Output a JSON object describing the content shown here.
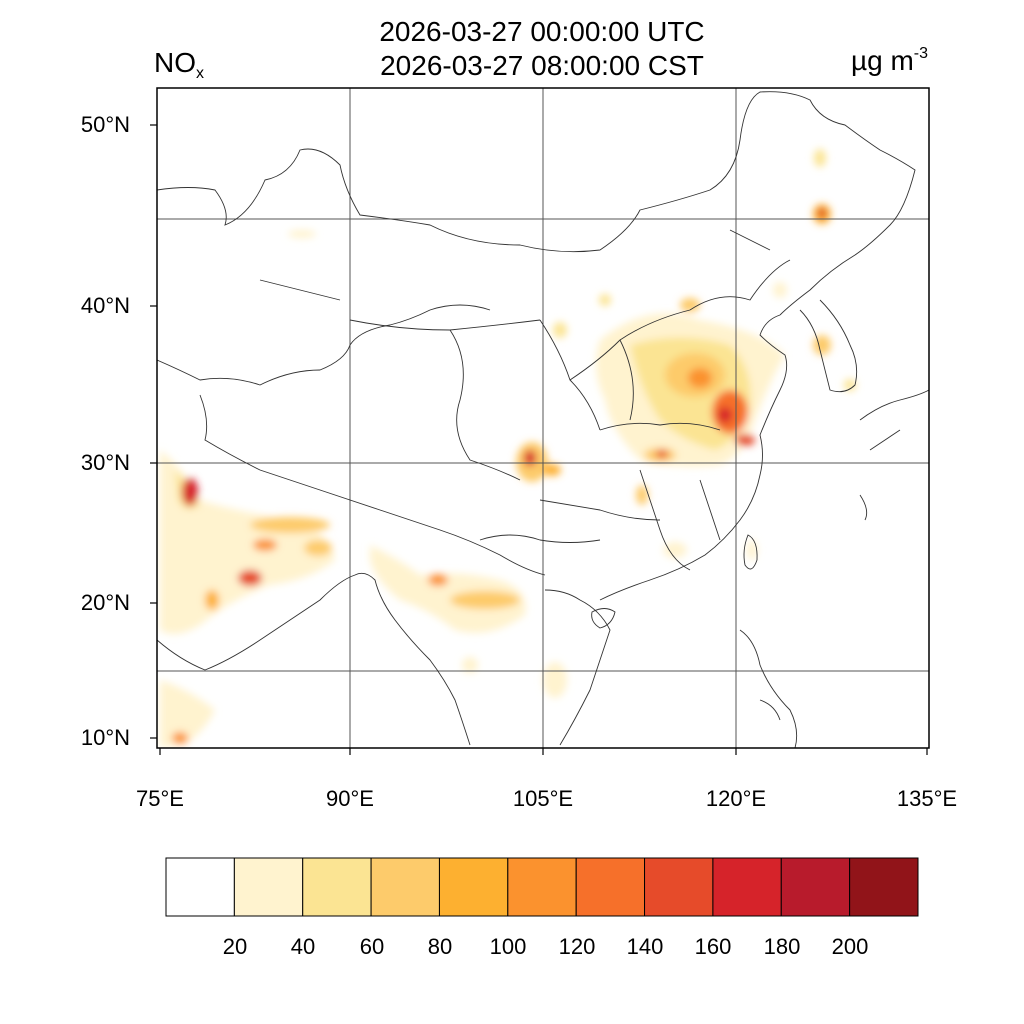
{
  "header": {
    "title_utc": "2026-03-27 00:00:00 UTC",
    "title_cst": "2026-03-27 08:00:00 CST",
    "species_main": "NO",
    "species_sub": "x",
    "units_main": "µg m",
    "units_sup": "-3"
  },
  "axes": {
    "lat_labels": [
      "50°N",
      "40°N",
      "30°N",
      "20°N",
      "10°N"
    ],
    "lon_labels": [
      "75°E",
      "90°E",
      "105°E",
      "120°E",
      "135°E"
    ]
  },
  "colorbar": {
    "labels": [
      "20",
      "40",
      "60",
      "80",
      "100",
      "120",
      "140",
      "160",
      "180",
      "200"
    ],
    "colors": [
      "#ffffff",
      "#fff3cf",
      "#fbe493",
      "#fdcb6b",
      "#fdb030",
      "#fb922e",
      "#f6702a",
      "#e64b2a",
      "#d6232a",
      "#b81b2c",
      "#911419"
    ]
  },
  "map": {
    "graticule_color": "#555555",
    "boundary_color": "#333333"
  }
}
